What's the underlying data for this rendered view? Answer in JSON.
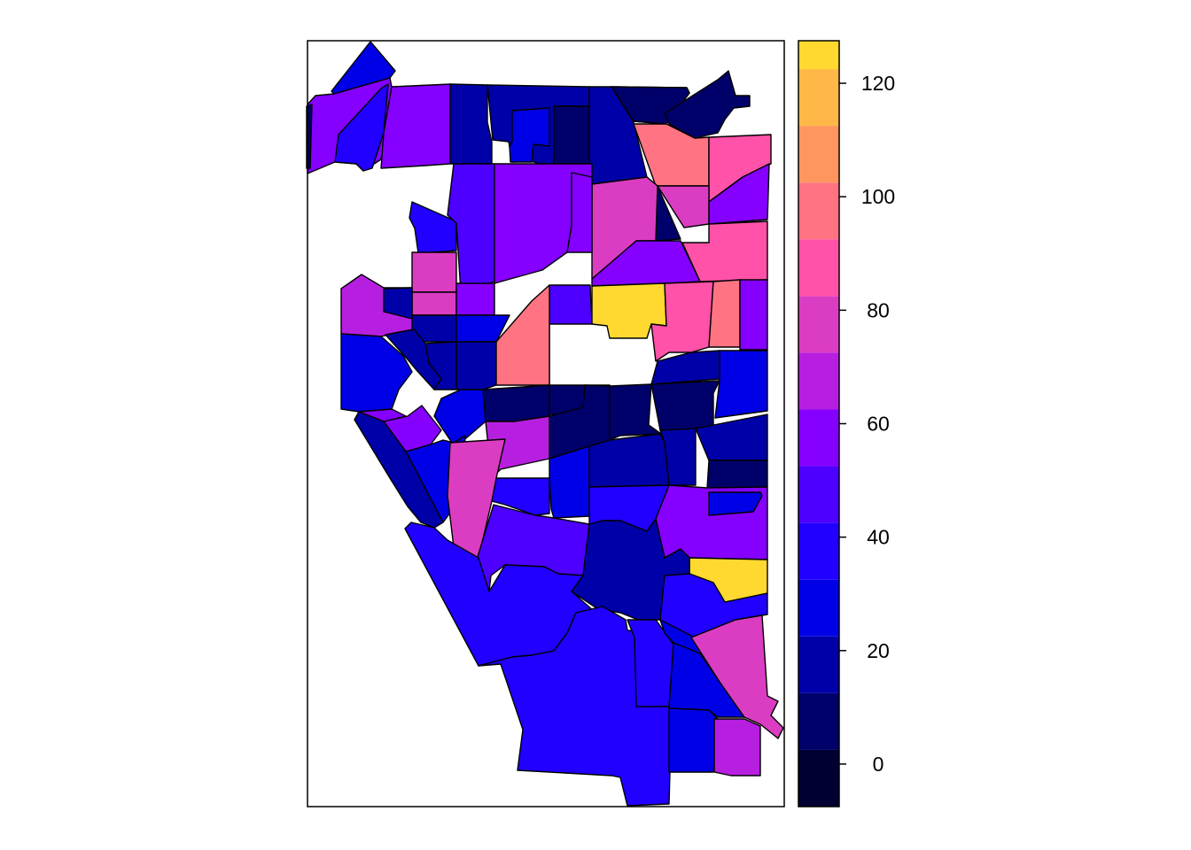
{
  "chart_data": {
    "type": "choropleth",
    "title": "",
    "legend": {
      "placement": "right",
      "breaks": [
        -7.5,
        2.5,
        12.5,
        22.5,
        32.5,
        42.5,
        52.5,
        62.5,
        72.5,
        82.5,
        92.5,
        102.5,
        112.5,
        122.5,
        127.5
      ],
      "colors": [
        "#000033",
        "#00006B",
        "#0000A8",
        "#0000E6",
        "#2100FF",
        "#4D00FF",
        "#8500FF",
        "#B71FE0",
        "#DB3DC2",
        "#FF52A8",
        "#FF7383",
        "#FF965E",
        "#FFB848",
        "#FFD930",
        "#FFF51A",
        "#FFFF60"
      ],
      "ticks": [
        "0",
        "20",
        "40",
        "60",
        "80",
        "100",
        "120"
      ],
      "tick_values": [
        0,
        20,
        40,
        60,
        80,
        100,
        120
      ],
      "range": [
        -7.5,
        127.5
      ]
    },
    "region_values": [
      28,
      60,
      42,
      60,
      20,
      18,
      25,
      12,
      18,
      25,
      8,
      3,
      98,
      92,
      12,
      80,
      78,
      55,
      58,
      90,
      125,
      88,
      98,
      45,
      62,
      50,
      38,
      48,
      58,
      60,
      68,
      78,
      82,
      60,
      22,
      25,
      95,
      18,
      20,
      18,
      12,
      10,
      8,
      12,
      12,
      25,
      18,
      32,
      32,
      58,
      60,
      28,
      65,
      26,
      22,
      20,
      20,
      8,
      35,
      38,
      78,
      14,
      58,
      125,
      48,
      38,
      22,
      38,
      38,
      40,
      30,
      25,
      24,
      78,
      72,
      32,
      15,
      8
    ]
  }
}
